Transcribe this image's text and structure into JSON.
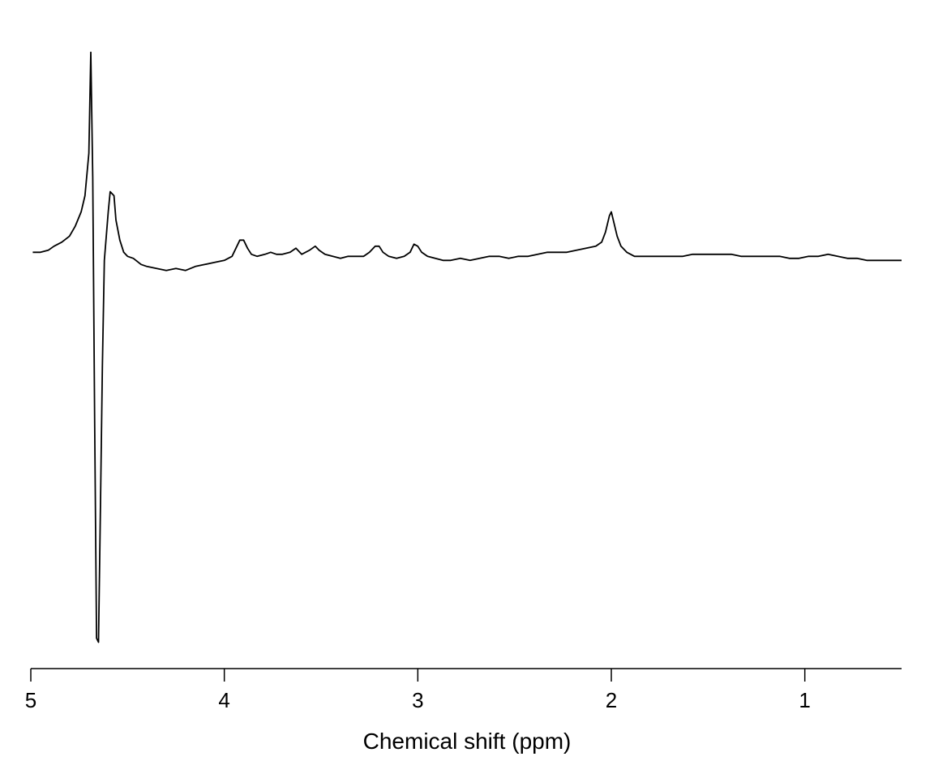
{
  "chart_data": {
    "type": "line",
    "title": "",
    "xlabel": "Chemical shift (ppm)",
    "ylabel": "",
    "x_reversed": true,
    "xlim": [
      5.0,
      0.5
    ],
    "ylim": [
      -1.9,
      1.1
    ],
    "grid": false,
    "x_ticks": [
      "5",
      "4",
      "3",
      "2",
      "1"
    ],
    "x_tick_values": [
      5,
      4,
      3,
      2,
      1
    ],
    "series": [
      {
        "color": "#000000",
        "points": [
          [
            4.99,
            0.06
          ],
          [
            4.95,
            0.06
          ],
          [
            4.91,
            0.07
          ],
          [
            4.88,
            0.09
          ],
          [
            4.84,
            0.11
          ],
          [
            4.8,
            0.14
          ],
          [
            4.77,
            0.19
          ],
          [
            4.74,
            0.26
          ],
          [
            4.72,
            0.34
          ],
          [
            4.7,
            0.55
          ],
          [
            4.69,
            1.05
          ],
          [
            4.68,
            0.43
          ],
          [
            4.67,
            -0.8
          ],
          [
            4.66,
            -1.85
          ],
          [
            4.65,
            -1.87
          ],
          [
            4.64,
            -1.2
          ],
          [
            4.63,
            -0.5
          ],
          [
            4.62,
            0.02
          ],
          [
            4.615,
            0.08
          ],
          [
            4.6,
            0.26
          ],
          [
            4.59,
            0.36
          ],
          [
            4.57,
            0.34
          ],
          [
            4.56,
            0.22
          ],
          [
            4.54,
            0.12
          ],
          [
            4.52,
            0.06
          ],
          [
            4.5,
            0.04
          ],
          [
            4.47,
            0.03
          ],
          [
            4.43,
            0.0
          ],
          [
            4.4,
            -0.01
          ],
          [
            4.35,
            -0.02
          ],
          [
            4.3,
            -0.03
          ],
          [
            4.25,
            -0.02
          ],
          [
            4.2,
            -0.03
          ],
          [
            4.15,
            -0.01
          ],
          [
            4.1,
            0.0
          ],
          [
            4.05,
            0.01
          ],
          [
            4.0,
            0.02
          ],
          [
            3.96,
            0.04
          ],
          [
            3.94,
            0.08
          ],
          [
            3.92,
            0.12
          ],
          [
            3.9,
            0.12
          ],
          [
            3.88,
            0.08
          ],
          [
            3.86,
            0.05
          ],
          [
            3.83,
            0.04
          ],
          [
            3.79,
            0.05
          ],
          [
            3.76,
            0.06
          ],
          [
            3.73,
            0.05
          ],
          [
            3.7,
            0.05
          ],
          [
            3.66,
            0.06
          ],
          [
            3.63,
            0.08
          ],
          [
            3.6,
            0.05
          ],
          [
            3.56,
            0.07
          ],
          [
            3.53,
            0.09
          ],
          [
            3.51,
            0.07
          ],
          [
            3.48,
            0.05
          ],
          [
            3.44,
            0.04
          ],
          [
            3.4,
            0.03
          ],
          [
            3.36,
            0.04
          ],
          [
            3.32,
            0.04
          ],
          [
            3.28,
            0.04
          ],
          [
            3.25,
            0.06
          ],
          [
            3.22,
            0.09
          ],
          [
            3.2,
            0.09
          ],
          [
            3.18,
            0.06
          ],
          [
            3.15,
            0.04
          ],
          [
            3.11,
            0.03
          ],
          [
            3.07,
            0.04
          ],
          [
            3.04,
            0.06
          ],
          [
            3.02,
            0.1
          ],
          [
            3.0,
            0.09
          ],
          [
            2.98,
            0.06
          ],
          [
            2.95,
            0.04
          ],
          [
            2.91,
            0.03
          ],
          [
            2.87,
            0.02
          ],
          [
            2.83,
            0.02
          ],
          [
            2.78,
            0.03
          ],
          [
            2.73,
            0.02
          ],
          [
            2.68,
            0.03
          ],
          [
            2.63,
            0.04
          ],
          [
            2.58,
            0.04
          ],
          [
            2.53,
            0.03
          ],
          [
            2.48,
            0.04
          ],
          [
            2.43,
            0.04
          ],
          [
            2.38,
            0.05
          ],
          [
            2.33,
            0.06
          ],
          [
            2.28,
            0.06
          ],
          [
            2.23,
            0.06
          ],
          [
            2.18,
            0.07
          ],
          [
            2.13,
            0.08
          ],
          [
            2.08,
            0.09
          ],
          [
            2.05,
            0.11
          ],
          [
            2.03,
            0.16
          ],
          [
            2.01,
            0.24
          ],
          [
            2.0,
            0.26
          ],
          [
            1.99,
            0.22
          ],
          [
            1.97,
            0.14
          ],
          [
            1.95,
            0.09
          ],
          [
            1.92,
            0.06
          ],
          [
            1.88,
            0.04
          ],
          [
            1.83,
            0.04
          ],
          [
            1.78,
            0.04
          ],
          [
            1.73,
            0.04
          ],
          [
            1.68,
            0.04
          ],
          [
            1.63,
            0.04
          ],
          [
            1.58,
            0.05
          ],
          [
            1.53,
            0.05
          ],
          [
            1.48,
            0.05
          ],
          [
            1.43,
            0.05
          ],
          [
            1.38,
            0.05
          ],
          [
            1.33,
            0.04
          ],
          [
            1.28,
            0.04
          ],
          [
            1.23,
            0.04
          ],
          [
            1.18,
            0.04
          ],
          [
            1.13,
            0.04
          ],
          [
            1.08,
            0.03
          ],
          [
            1.03,
            0.03
          ],
          [
            0.98,
            0.04
          ],
          [
            0.93,
            0.04
          ],
          [
            0.88,
            0.05
          ],
          [
            0.83,
            0.04
          ],
          [
            0.78,
            0.03
          ],
          [
            0.73,
            0.03
          ],
          [
            0.68,
            0.02
          ],
          [
            0.63,
            0.02
          ],
          [
            0.58,
            0.02
          ],
          [
            0.53,
            0.02
          ],
          [
            0.5,
            0.02
          ]
        ]
      }
    ]
  }
}
